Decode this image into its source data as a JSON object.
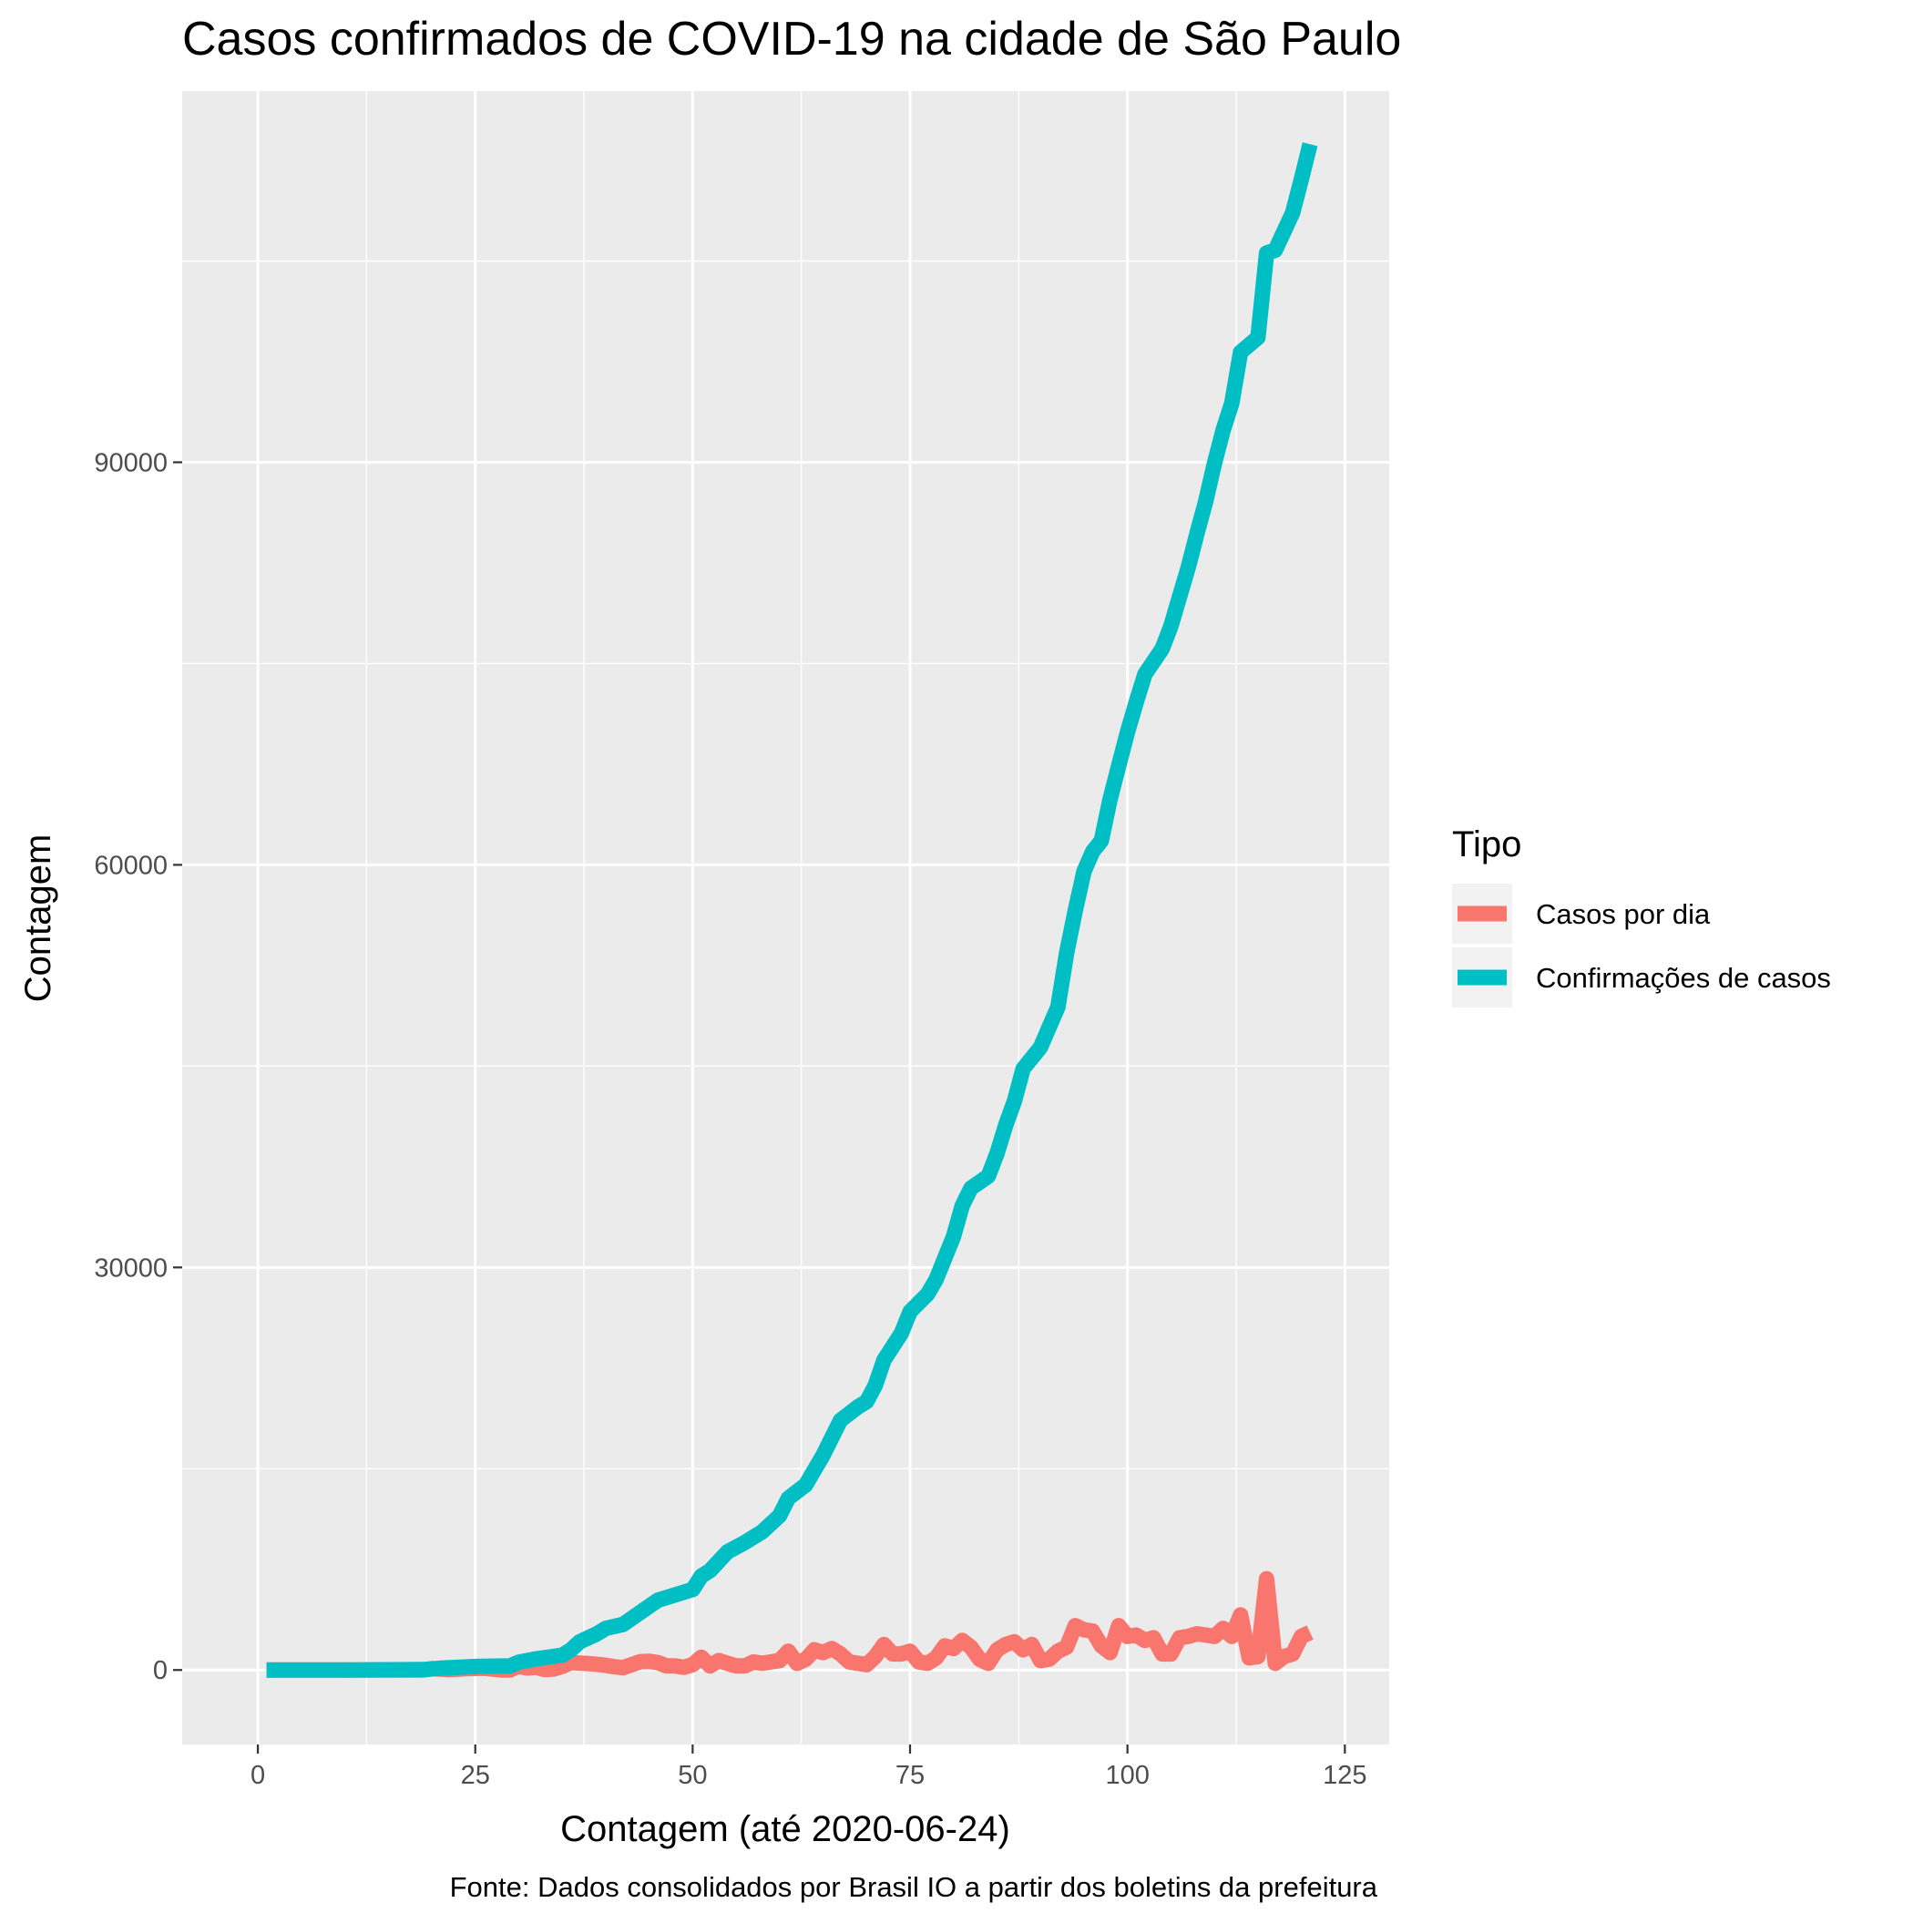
{
  "chart_data": {
    "type": "line",
    "title": "Casos confirmados de COVID-19 na cidade de São Paulo",
    "xlabel": "Contagem (até 2020-06-24)",
    "ylabel": "Contagem",
    "caption": "Fonte: Dados consolidados por Brasil IO a partir dos boletins da prefeitura",
    "xlim": [
      -8.7,
      130.1
    ],
    "ylim": [
      -5550,
      117660
    ],
    "x_ticks": [
      0,
      25,
      50,
      75,
      100,
      125
    ],
    "x_tick_labels": [
      "0",
      "25",
      "50",
      "75",
      "100",
      "125"
    ],
    "y_ticks": [
      0,
      30000,
      60000,
      90000
    ],
    "y_tick_labels": [
      "0",
      "30000",
      "60000",
      "90000"
    ],
    "x_minor_ticks": [
      12.5,
      37.5,
      62.5,
      87.5,
      112.5
    ],
    "y_minor_ticks": [
      15000,
      45000,
      75000,
      105000
    ],
    "grid": true,
    "legend": {
      "title": "Tipo",
      "position": "right",
      "entries": [
        "Casos por dia",
        "Confirmações de casos"
      ]
    },
    "colors": {
      "panel": "#ebebeb",
      "grid": "#ffffff",
      "Casos por dia": "#f8766d",
      "Confirmações de casos": "#00bfc4"
    },
    "series": [
      {
        "name": "Confirmações de casos",
        "points": [
          [
            1,
            0
          ],
          [
            10,
            0
          ],
          [
            19,
            30
          ],
          [
            21,
            130
          ],
          [
            25,
            260
          ],
          [
            29,
            300
          ],
          [
            30,
            580
          ],
          [
            32,
            830
          ],
          [
            35,
            1100
          ],
          [
            36,
            1500
          ],
          [
            37,
            2100
          ],
          [
            39,
            2700
          ],
          [
            40,
            3100
          ],
          [
            42,
            3400
          ],
          [
            44,
            4300
          ],
          [
            46,
            5200
          ],
          [
            48,
            5600
          ],
          [
            50,
            6000
          ],
          [
            51,
            7000
          ],
          [
            52,
            7400
          ],
          [
            54,
            8800
          ],
          [
            56,
            9500
          ],
          [
            58,
            10300
          ],
          [
            60,
            11500
          ],
          [
            61,
            12800
          ],
          [
            63,
            13800
          ],
          [
            65,
            16000
          ],
          [
            67,
            18600
          ],
          [
            69,
            19600
          ],
          [
            70,
            20000
          ],
          [
            71,
            21200
          ],
          [
            72,
            23100
          ],
          [
            74,
            25100
          ],
          [
            75,
            26700
          ],
          [
            77,
            28000
          ],
          [
            78,
            29100
          ],
          [
            80,
            32300
          ],
          [
            81,
            34600
          ],
          [
            82,
            35900
          ],
          [
            84,
            36800
          ],
          [
            85,
            38500
          ],
          [
            86,
            40600
          ],
          [
            87,
            42400
          ],
          [
            88,
            44800
          ],
          [
            90,
            46400
          ],
          [
            91,
            47900
          ],
          [
            92,
            49400
          ],
          [
            93,
            53400
          ],
          [
            94,
            56600
          ],
          [
            95,
            59500
          ],
          [
            96,
            61000
          ],
          [
            97,
            61800
          ],
          [
            98,
            64900
          ],
          [
            99,
            67400
          ],
          [
            100,
            69900
          ],
          [
            101,
            72100
          ],
          [
            102,
            74200
          ],
          [
            104,
            76100
          ],
          [
            105,
            77800
          ],
          [
            106,
            80000
          ],
          [
            107,
            82200
          ],
          [
            108,
            84700
          ],
          [
            109,
            87100
          ],
          [
            110,
            89900
          ],
          [
            111,
            92400
          ],
          [
            112,
            94400
          ],
          [
            113,
            98200
          ],
          [
            115,
            99300
          ],
          [
            116,
            105600
          ],
          [
            117,
            105800
          ],
          [
            118,
            107200
          ],
          [
            119,
            108600
          ],
          [
            120,
            111100
          ],
          [
            121,
            113700
          ]
        ]
      },
      {
        "name": "Casos por dia",
        "points": [
          [
            1,
            0
          ],
          [
            19,
            0
          ],
          [
            20,
            100
          ],
          [
            22,
            30
          ],
          [
            24,
            100
          ],
          [
            26,
            130
          ],
          [
            28,
            0
          ],
          [
            29,
            0
          ],
          [
            30,
            280
          ],
          [
            31,
            150
          ],
          [
            32,
            200
          ],
          [
            33,
            30
          ],
          [
            34,
            70
          ],
          [
            35,
            270
          ],
          [
            36,
            550
          ],
          [
            37,
            520
          ],
          [
            38,
            480
          ],
          [
            39,
            420
          ],
          [
            40,
            350
          ],
          [
            41,
            240
          ],
          [
            42,
            170
          ],
          [
            43,
            400
          ],
          [
            44,
            620
          ],
          [
            45,
            650
          ],
          [
            46,
            550
          ],
          [
            47,
            300
          ],
          [
            48,
            300
          ],
          [
            49,
            200
          ],
          [
            50,
            400
          ],
          [
            51,
            950
          ],
          [
            52,
            300
          ],
          [
            53,
            700
          ],
          [
            54,
            500
          ],
          [
            55,
            300
          ],
          [
            56,
            300
          ],
          [
            57,
            600
          ],
          [
            58,
            500
          ],
          [
            59,
            600
          ],
          [
            60,
            700
          ],
          [
            61,
            1400
          ],
          [
            62,
            500
          ],
          [
            63,
            800
          ],
          [
            64,
            1500
          ],
          [
            65,
            1300
          ],
          [
            66,
            1600
          ],
          [
            67,
            1200
          ],
          [
            68,
            600
          ],
          [
            69,
            500
          ],
          [
            70,
            400
          ],
          [
            71,
            1000
          ],
          [
            72,
            1900
          ],
          [
            73,
            1200
          ],
          [
            74,
            1200
          ],
          [
            75,
            1400
          ],
          [
            76,
            600
          ],
          [
            77,
            500
          ],
          [
            78,
            900
          ],
          [
            79,
            1800
          ],
          [
            80,
            1600
          ],
          [
            81,
            2200
          ],
          [
            82,
            1700
          ],
          [
            83,
            800
          ],
          [
            84,
            500
          ],
          [
            85,
            1500
          ],
          [
            86,
            1900
          ],
          [
            87,
            2100
          ],
          [
            88,
            1500
          ],
          [
            89,
            1900
          ],
          [
            90,
            700
          ],
          [
            91,
            800
          ],
          [
            92,
            1400
          ],
          [
            93,
            1700
          ],
          [
            94,
            3300
          ],
          [
            95,
            3000
          ],
          [
            96,
            2900
          ],
          [
            97,
            1800
          ],
          [
            98,
            1300
          ],
          [
            99,
            3300
          ],
          [
            100,
            2500
          ],
          [
            101,
            2600
          ],
          [
            102,
            2200
          ],
          [
            103,
            2400
          ],
          [
            104,
            1200
          ],
          [
            105,
            1200
          ],
          [
            106,
            2400
          ],
          [
            107,
            2500
          ],
          [
            108,
            2700
          ],
          [
            109,
            2600
          ],
          [
            110,
            2500
          ],
          [
            111,
            3100
          ],
          [
            112,
            2500
          ],
          [
            113,
            4100
          ],
          [
            114,
            900
          ],
          [
            115,
            1000
          ],
          [
            116,
            6800
          ],
          [
            117,
            500
          ],
          [
            118,
            1000
          ],
          [
            119,
            1200
          ],
          [
            120,
            2500
          ],
          [
            121,
            2800
          ]
        ]
      }
    ]
  }
}
